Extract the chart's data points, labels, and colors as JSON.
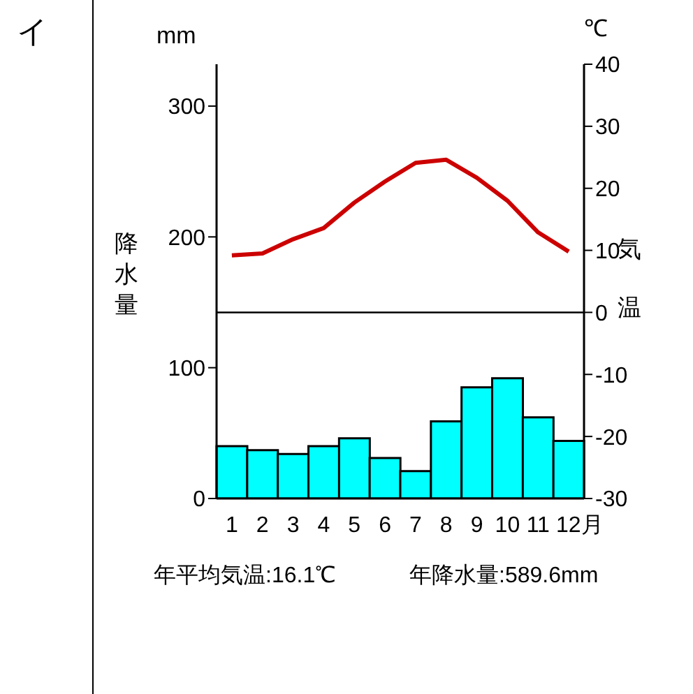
{
  "chart_data": {
    "type": "bar",
    "categories": [
      "1",
      "2",
      "3",
      "4",
      "5",
      "6",
      "7",
      "8",
      "9",
      "10",
      "11",
      "12月"
    ],
    "ylabel": "降水量",
    "y2label": "気温",
    "series": [
      {
        "color": "#00ffff",
        "values": [
          40,
          37,
          34,
          40,
          46,
          31,
          21,
          59,
          85,
          92,
          62,
          44
        ]
      },
      {
        "type": "line",
        "axis": "y2",
        "color": "#cc0000",
        "values": [
          9.2,
          9.5,
          11.8,
          13.6,
          17.7,
          21.1,
          24.1,
          24.6,
          21.7,
          18.0,
          12.9,
          9.8
        ]
      }
    ],
    "ylim": [
      0,
      332
    ],
    "yticks": [
      0,
      100,
      200,
      300
    ],
    "y2lim": [
      -30,
      40
    ],
    "y2ticks": [
      -30,
      -20,
      -10,
      0,
      10,
      20,
      30,
      40
    ],
    "ref_lines": [
      {
        "axis": "y2",
        "value": 0,
        "color": "#000000"
      }
    ],
    "annotations": [
      "イ",
      "mm",
      "℃",
      "年平均気温:16.1℃",
      "年降水量:589.6mm"
    ]
  }
}
